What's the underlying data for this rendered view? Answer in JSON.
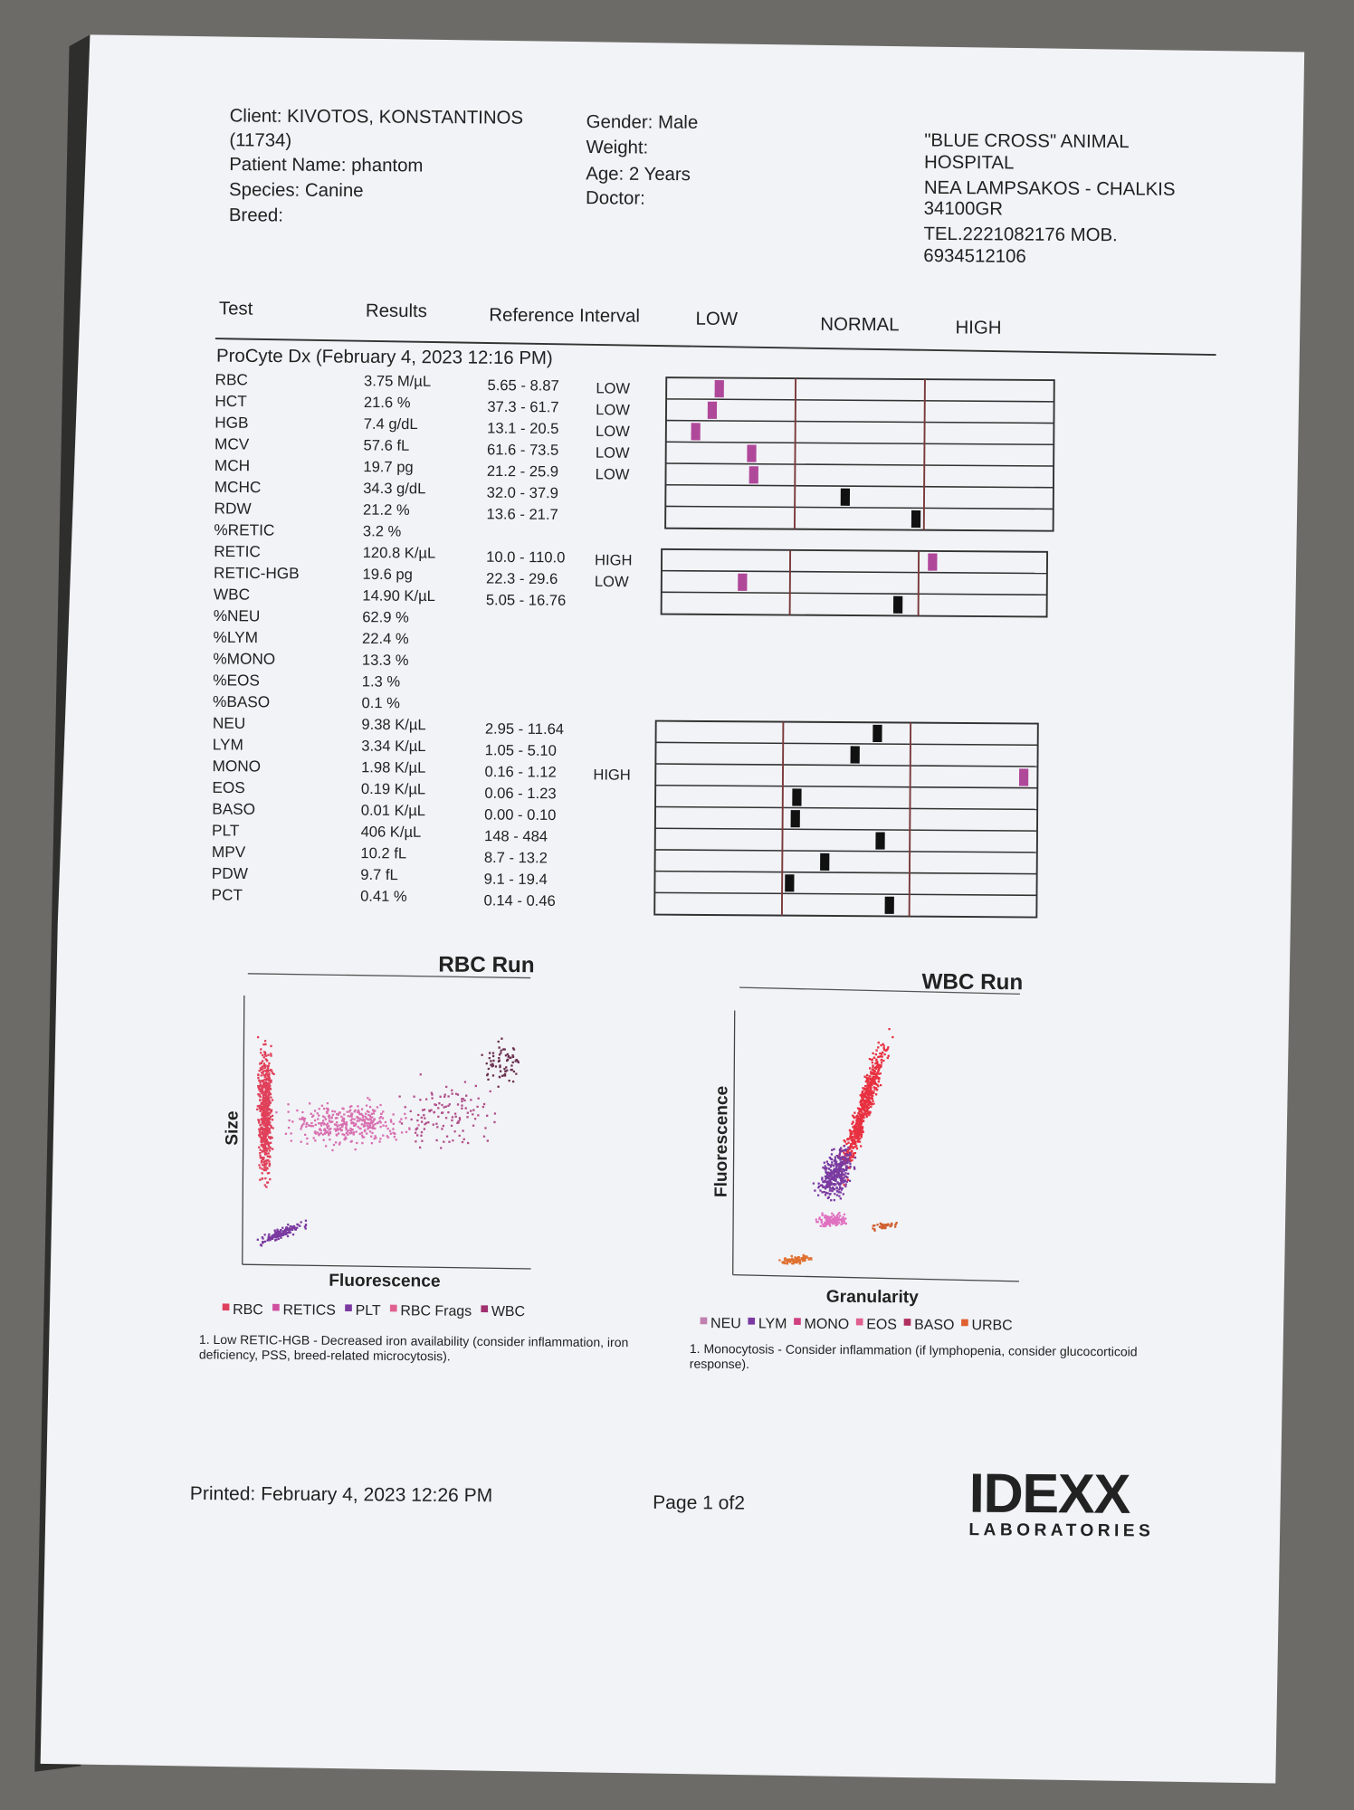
{
  "header": {
    "client_lines": [
      "Client: KIVOTOS, KONSTANTINOS",
      "(11734)",
      "Patient Name: phantom",
      "Species: Canine",
      "Breed:"
    ],
    "patient_lines": [
      "Gender: Male",
      "Weight:",
      "Age: 2 Years",
      "Doctor:"
    ],
    "hospital_lines": [
      "\"BLUE CROSS\" ANIMAL",
      "HOSPITAL",
      "NEA LAMPSAKOS - CHALKIS",
      "34100GR",
      "TEL.2221082176 MOB.",
      "6934512106"
    ]
  },
  "table": {
    "columns": [
      "Test",
      "Results",
      "Reference Interval",
      "LOW",
      "NORMAL",
      "HIGH"
    ],
    "section": "ProCyte Dx (February 4, 2023 12:16 PM)",
    "rows": [
      {
        "test": "RBC",
        "result": "3.75 M/µL",
        "reference": "5.65 - 8.87",
        "flag": "LOW"
      },
      {
        "test": "HCT",
        "result": "21.6 %",
        "reference": "37.3 - 61.7",
        "flag": "LOW"
      },
      {
        "test": "HGB",
        "result": "7.4 g/dL",
        "reference": "13.1 - 20.5",
        "flag": "LOW"
      },
      {
        "test": "MCV",
        "result": "57.6 fL",
        "reference": "61.6 - 73.5",
        "flag": "LOW"
      },
      {
        "test": "MCH",
        "result": "19.7 pg",
        "reference": "21.2 - 25.9",
        "flag": "LOW"
      },
      {
        "test": "MCHC",
        "result": "34.3 g/dL",
        "reference": "32.0 - 37.9"
      },
      {
        "test": "RDW",
        "result": "21.2 %",
        "reference": "13.6 - 21.7"
      },
      {
        "test": "%RETIC",
        "result": "3.2 %"
      },
      {
        "test": "RETIC",
        "result": "120.8 K/µL",
        "reference": "10.0 - 110.0",
        "flag": "HIGH"
      },
      {
        "test": "RETIC-HGB",
        "result": "19.6 pg",
        "reference": "22.3 - 29.6",
        "flag": "LOW"
      },
      {
        "test": "WBC",
        "result": "14.90 K/µL",
        "reference": "5.05 - 16.76"
      },
      {
        "test": "%NEU",
        "result": "62.9 %"
      },
      {
        "test": "%LYM",
        "result": "22.4 %"
      },
      {
        "test": "%MONO",
        "result": "13.3 %"
      },
      {
        "test": "%EOS",
        "result": "1.3 %"
      },
      {
        "test": "%BASO",
        "result": "0.1 %"
      },
      {
        "test": "NEU",
        "result": "9.38 K/µL",
        "reference": "2.95 - 11.64"
      },
      {
        "test": "LYM",
        "result": "3.34 K/µL",
        "reference": "1.05 - 5.10"
      },
      {
        "test": "MONO",
        "result": "1.98 K/µL",
        "reference": "0.16 - 1.12",
        "flag": "HIGH"
      },
      {
        "test": "EOS",
        "result": "0.19 K/µL",
        "reference": "0.06 - 1.23"
      },
      {
        "test": "BASO",
        "result": "0.01 K/µL",
        "reference": "0.00 - 0.10"
      },
      {
        "test": "PLT",
        "result": "406 K/µL",
        "reference": "148 - 484"
      },
      {
        "test": "MPV",
        "result": "10.2 fL",
        "reference": "8.7 - 13.2"
      },
      {
        "test": "PDW",
        "result": "9.7 fL",
        "reference": "9.1 - 19.4"
      },
      {
        "test": "PCT",
        "result": "0.41 %",
        "reference": "0.14 - 0.46"
      }
    ]
  },
  "rbc_run": {
    "title": "RBC Run",
    "y_label": "Size",
    "x_label": "Fluorescence",
    "legend": [
      "RBC",
      "RETICS",
      "PLT",
      "RBC Frags",
      "WBC"
    ],
    "note_lines": [
      "1. Low RETIC-HGB - Decreased iron availability (consider inflammation, iron",
      "deficiency, PSS, breed-related microcytosis)."
    ]
  },
  "wbc_run": {
    "title": "WBC Run",
    "y_label": "Fluorescence",
    "x_label": "Granularity",
    "legend": [
      "NEU",
      "LYM",
      "MONO",
      "EOS",
      "BASO",
      "URBC"
    ],
    "note_lines": [
      "1. Monocytosis - Consider inflammation (if lymphopenia, consider glucocorticoid",
      "response)."
    ]
  },
  "footer": {
    "printed": "Printed: February 4, 2023 12:26 PM",
    "page": "Page 1 of2",
    "logo": "IDEXX",
    "logo_sub": "LABORATORIES"
  }
}
